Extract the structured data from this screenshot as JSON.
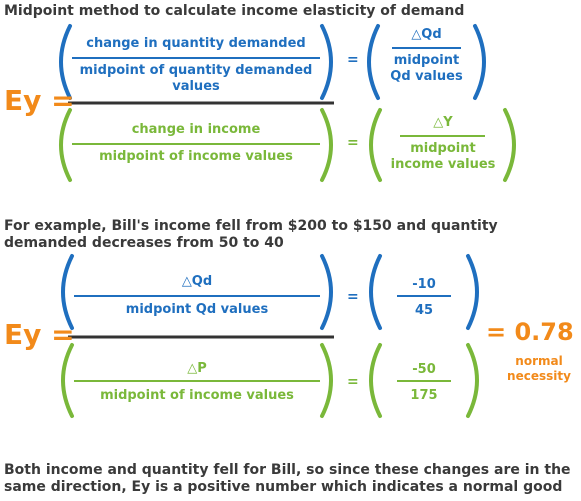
{
  "colors": {
    "blue": "#1f6fbf",
    "green": "#7ab83a",
    "orange": "#f28a1a",
    "dark": "#3a3a3a",
    "main_bar": "#333333"
  },
  "title": "Midpoint method to calculate income elasticity of demand",
  "formula1": {
    "ey_label": "Ey =",
    "top_numerator": "change in quantity demanded",
    "top_denominator_line1": "midpoint of quantity demanded",
    "top_denominator_line2": "values",
    "top_equals": "=",
    "top_right_numerator": "△Qd",
    "top_right_denominator_line1": "midpoint",
    "top_right_denominator_line2": "Qd values",
    "bottom_numerator": "change in income",
    "bottom_denominator": "midpoint of income values",
    "bottom_equals": "=",
    "bottom_right_numerator": "△Y",
    "bottom_right_denominator_line1": "midpoint",
    "bottom_right_denominator_line2": "income values"
  },
  "example_text_line1": "For example, Bill's income fell from $200 to $150 and quantity",
  "example_text_line2": "demanded decreases from 50 to 40",
  "formula2": {
    "ey_label": "Ey =",
    "top_numerator": "△Qd",
    "top_denominator": "midpoint Qd values",
    "top_equals": "=",
    "top_right_numerator": "-10",
    "top_right_denominator": "45",
    "bottom_numerator": "△P",
    "bottom_denominator": "midpoint of income values",
    "bottom_equals": "=",
    "bottom_right_numerator": "-50",
    "bottom_right_denominator": "175",
    "result": "= 0.78",
    "result_label_line1": "normal",
    "result_label_line2": "necessity"
  },
  "conclusion_line1": "Both income and quantity fell for Bill, so since these changes are in the",
  "conclusion_line2": "same direction, Ey is a positive number which indicates a normal good"
}
